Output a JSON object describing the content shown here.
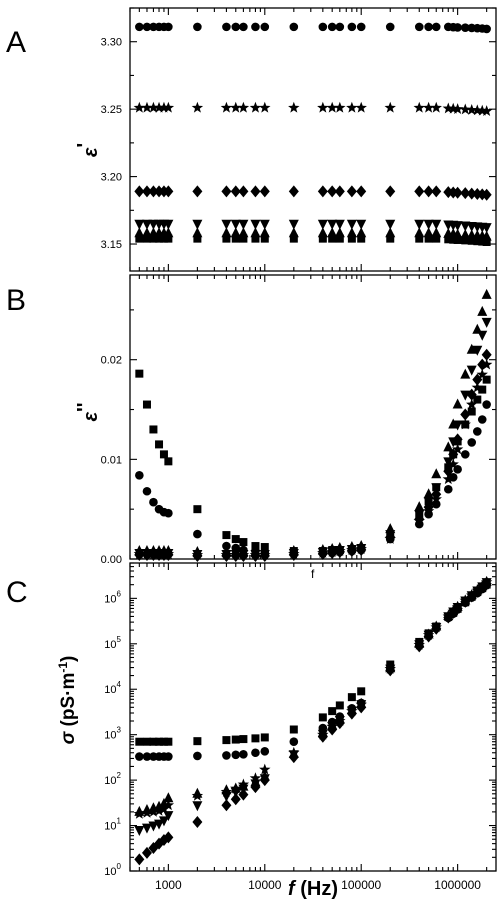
{
  "panels": {
    "A": {
      "label": "A",
      "ylabel_sym": "ε",
      "ylabel_prime": "'"
    },
    "B": {
      "label": "B",
      "ylabel_sym": "ε",
      "ylabel_prime": "''"
    },
    "C": {
      "label": "C",
      "ylabel_sym": "σ",
      "ylabel_rest": " (pS·m",
      "ylabel_sup": "-1",
      "ylabel_end": ")",
      "stray": "f"
    }
  },
  "xaxis": {
    "symbol": "f",
    "unit": " (Hz)"
  },
  "chart_data": [
    {
      "type": "scatter",
      "panel": "A",
      "xlabel": "f (Hz)",
      "ylabel": "ε'",
      "xscale": "log",
      "xlim": [
        400,
        2500000
      ],
      "ylim": [
        3.13,
        3.325
      ],
      "yticks": [
        3.15,
        3.2,
        3.25,
        3.3
      ],
      "yticklabels": [
        "3.15",
        "3.20",
        "3.25",
        "3.30"
      ],
      "x": [
        500,
        600,
        700,
        800,
        900,
        1000,
        2000,
        4000,
        5000,
        6000,
        8000,
        10000,
        20000,
        40000,
        50000,
        60000,
        80000,
        100000,
        200000,
        400000,
        500000,
        600000,
        800000,
        900000,
        1000000,
        1200000,
        1400000,
        1600000,
        1800000,
        2000000
      ],
      "series": [
        {
          "marker": "circle",
          "values": [
            3.311,
            3.311,
            3.311,
            3.311,
            3.311,
            3.311,
            3.311,
            3.311,
            3.311,
            3.311,
            3.311,
            3.311,
            3.311,
            3.311,
            3.311,
            3.311,
            3.311,
            3.311,
            3.311,
            3.311,
            3.311,
            3.311,
            3.311,
            3.3108,
            3.3106,
            3.3104,
            3.3102,
            3.31,
            3.3098,
            3.3095
          ]
        },
        {
          "marker": "star",
          "values": [
            3.251,
            3.251,
            3.251,
            3.251,
            3.251,
            3.251,
            3.251,
            3.251,
            3.251,
            3.251,
            3.251,
            3.251,
            3.251,
            3.251,
            3.251,
            3.251,
            3.251,
            3.251,
            3.251,
            3.251,
            3.251,
            3.251,
            3.2505,
            3.2503,
            3.25,
            3.2497,
            3.2494,
            3.2491,
            3.2488,
            3.2485
          ]
        },
        {
          "marker": "diamond",
          "values": [
            3.189,
            3.189,
            3.189,
            3.189,
            3.189,
            3.189,
            3.189,
            3.189,
            3.189,
            3.189,
            3.189,
            3.189,
            3.189,
            3.189,
            3.189,
            3.189,
            3.189,
            3.189,
            3.189,
            3.189,
            3.189,
            3.189,
            3.1885,
            3.1882,
            3.188,
            3.1877,
            3.1874,
            3.1871,
            3.1868,
            3.1865
          ]
        },
        {
          "marker": "triangle-down",
          "values": [
            3.165,
            3.165,
            3.165,
            3.165,
            3.165,
            3.165,
            3.165,
            3.165,
            3.165,
            3.165,
            3.165,
            3.165,
            3.165,
            3.165,
            3.165,
            3.165,
            3.165,
            3.165,
            3.165,
            3.165,
            3.165,
            3.165,
            3.1645,
            3.1643,
            3.164,
            3.1637,
            3.1634,
            3.1631,
            3.1628,
            3.1625
          ]
        },
        {
          "marker": "triangle-up",
          "values": [
            3.158,
            3.158,
            3.158,
            3.158,
            3.158,
            3.158,
            3.158,
            3.158,
            3.158,
            3.158,
            3.158,
            3.158,
            3.158,
            3.158,
            3.158,
            3.158,
            3.158,
            3.158,
            3.158,
            3.158,
            3.158,
            3.158,
            3.1575,
            3.1573,
            3.157,
            3.1567,
            3.1564,
            3.1561,
            3.1558,
            3.1555
          ]
        },
        {
          "marker": "square",
          "values": [
            3.154,
            3.154,
            3.154,
            3.154,
            3.154,
            3.154,
            3.154,
            3.154,
            3.154,
            3.154,
            3.154,
            3.154,
            3.154,
            3.154,
            3.154,
            3.154,
            3.154,
            3.154,
            3.154,
            3.154,
            3.154,
            3.154,
            3.1535,
            3.1532,
            3.153,
            3.1527,
            3.1524,
            3.1521,
            3.1518,
            3.1515
          ]
        }
      ]
    },
    {
      "type": "scatter",
      "panel": "B",
      "xlabel": "f (Hz)",
      "ylabel": "ε''",
      "xscale": "log",
      "xlim": [
        400,
        2500000
      ],
      "ylim": [
        0,
        0.0285
      ],
      "yticks": [
        0,
        0.01,
        0.02
      ],
      "yticklabels": [
        "0.00",
        "0.01",
        "0.02"
      ],
      "x": [
        500,
        600,
        700,
        800,
        900,
        1000,
        2000,
        4000,
        5000,
        6000,
        8000,
        10000,
        20000,
        40000,
        50000,
        60000,
        80000,
        100000,
        200000,
        400000,
        500000,
        600000,
        800000,
        900000,
        1000000,
        1200000,
        1400000,
        1600000,
        1800000,
        2000000
      ],
      "series": [
        {
          "marker": "square",
          "values": [
            0.0186,
            0.0155,
            0.013,
            0.0115,
            0.0105,
            0.0098,
            0.005,
            0.0024,
            0.002,
            0.0017,
            0.0013,
            0.0012,
            0.0008,
            0.0008,
            0.0009,
            0.0009,
            0.001,
            0.0011,
            0.0023,
            0.0045,
            0.0058,
            0.0072,
            0.0092,
            0.0105,
            0.0118,
            0.0135,
            0.0148,
            0.016,
            0.017,
            0.018
          ]
        },
        {
          "marker": "circle",
          "values": [
            0.0084,
            0.0068,
            0.0057,
            0.005,
            0.0047,
            0.0046,
            0.0025,
            0.0013,
            0.0011,
            0.0009,
            0.0008,
            0.0007,
            0.0006,
            0.0006,
            0.0006,
            0.0007,
            0.0008,
            0.0009,
            0.002,
            0.0035,
            0.0045,
            0.0055,
            0.007,
            0.0082,
            0.009,
            0.0105,
            0.0117,
            0.0128,
            0.014,
            0.0155
          ]
        },
        {
          "marker": "star",
          "values": [
            0.0005,
            0.0005,
            0.0005,
            0.0005,
            0.0005,
            0.0005,
            0.0004,
            0.0004,
            0.0004,
            0.0004,
            0.0004,
            0.0004,
            0.0005,
            0.0006,
            0.0007,
            0.0008,
            0.0009,
            0.001,
            0.002,
            0.0038,
            0.0048,
            0.006,
            0.008,
            0.0095,
            0.011,
            0.0135,
            0.0155,
            0.0172,
            0.0185,
            0.0195
          ]
        },
        {
          "marker": "diamond",
          "values": [
            0.0004,
            0.0004,
            0.0004,
            0.0004,
            0.0004,
            0.0004,
            0.0003,
            0.0003,
            0.0003,
            0.0003,
            0.0003,
            0.0003,
            0.0004,
            0.0005,
            0.0006,
            0.0007,
            0.0008,
            0.0009,
            0.0022,
            0.004,
            0.0052,
            0.0065,
            0.0088,
            0.0105,
            0.012,
            0.0145,
            0.0165,
            0.018,
            0.0195,
            0.0205
          ]
        },
        {
          "marker": "triangle-down",
          "values": [
            0.0006,
            0.0006,
            0.0006,
            0.0006,
            0.0006,
            0.0006,
            0.0005,
            0.0005,
            0.0005,
            0.0005,
            0.0005,
            0.0005,
            0.0006,
            0.0007,
            0.0008,
            0.0009,
            0.001,
            0.0011,
            0.0025,
            0.0045,
            0.0058,
            0.0072,
            0.0098,
            0.0118,
            0.0135,
            0.0165,
            0.019,
            0.021,
            0.0225,
            0.0238
          ]
        },
        {
          "marker": "triangle-up",
          "values": [
            0.0008,
            0.0008,
            0.0008,
            0.0008,
            0.0008,
            0.0008,
            0.0007,
            0.0007,
            0.0007,
            0.0007,
            0.0007,
            0.0007,
            0.0008,
            0.0009,
            0.001,
            0.0011,
            0.0012,
            0.0013,
            0.003,
            0.0052,
            0.0065,
            0.0085,
            0.0112,
            0.0135,
            0.0155,
            0.0185,
            0.021,
            0.023,
            0.0248,
            0.0265
          ]
        }
      ]
    },
    {
      "type": "scatter",
      "panel": "C",
      "xlabel": "f (Hz)",
      "ylabel": "σ (pS·m-1)",
      "xscale": "log",
      "yscale": "log",
      "xlim": [
        400,
        2500000
      ],
      "ylim": [
        1,
        6000000
      ],
      "xticks": [
        1000,
        10000,
        100000,
        1000000
      ],
      "xticklabels": [
        "1000",
        "10000",
        "100000",
        "1000000"
      ],
      "yticks": [
        1,
        10,
        100,
        1000,
        10000,
        100000,
        1000000
      ],
      "ytick_base": "10",
      "ytick_exponents": [
        "0",
        "1",
        "2",
        "3",
        "4",
        "5",
        "6"
      ],
      "x": [
        500,
        600,
        700,
        800,
        900,
        1000,
        2000,
        4000,
        5000,
        6000,
        8000,
        10000,
        20000,
        40000,
        50000,
        60000,
        80000,
        100000,
        200000,
        400000,
        500000,
        600000,
        800000,
        900000,
        1000000,
        1200000,
        1400000,
        1600000,
        1800000,
        2000000
      ],
      "series": [
        {
          "marker": "square",
          "values": [
            700,
            700,
            700,
            700,
            700,
            700,
            720,
            760,
            780,
            800,
            830,
            870,
            1300,
            2400,
            3300,
            4400,
            6700,
            9000,
            35000,
            110000,
            170000,
            240000,
            390000,
            480000,
            590000,
            820000,
            1090000,
            1380000,
            1680000,
            2010000
          ]
        },
        {
          "marker": "circle",
          "values": [
            330,
            330,
            330,
            330,
            330,
            330,
            340,
            350,
            360,
            370,
            400,
            430,
            700,
            1400,
            1900,
            2500,
            3800,
            5000,
            28000,
            90000,
            150000,
            220000,
            370000,
            460000,
            570000,
            800000,
            1040000,
            1300000,
            1600000,
            1950000
          ]
        },
        {
          "marker": "triangle-up",
          "values": [
            20,
            22,
            24,
            26,
            30,
            40,
            50,
            60,
            65,
            72,
            90,
            120,
            380,
            1100,
            1600,
            2200,
            3500,
            4800,
            29000,
            100000,
            160000,
            240000,
            410000,
            520000,
            650000,
            900000,
            1180000,
            1500000,
            1850000,
            2300000
          ]
        },
        {
          "marker": "triangle-down",
          "values": [
            8,
            9,
            10,
            11,
            13,
            17,
            28,
            45,
            55,
            65,
            85,
            110,
            370,
            1050,
            1550,
            2100,
            3400,
            4700,
            28500,
            98000,
            158000,
            235000,
            405000,
            515000,
            645000,
            895000,
            1170000,
            1490000,
            1840000,
            2280000
          ]
        },
        {
          "marker": "star",
          "values": [
            18,
            19,
            20,
            21,
            23,
            28,
            45,
            55,
            65,
            80,
            110,
            170,
            400,
            1000,
            1500,
            2000,
            3300,
            4600,
            28000,
            95000,
            155000,
            230000,
            400000,
            510000,
            640000,
            890000,
            1160000,
            1480000,
            1830000,
            2260000
          ]
        },
        {
          "marker": "diamond",
          "values": [
            1.8,
            2.5,
            3.2,
            4.0,
            4.8,
            5.5,
            12,
            28,
            38,
            48,
            70,
            100,
            320,
            900,
            1300,
            1800,
            2900,
            4000,
            26000,
            88000,
            145000,
            215000,
            380000,
            480000,
            600000,
            840000,
            1100000,
            1400000,
            1730000,
            2100000
          ]
        }
      ]
    }
  ]
}
